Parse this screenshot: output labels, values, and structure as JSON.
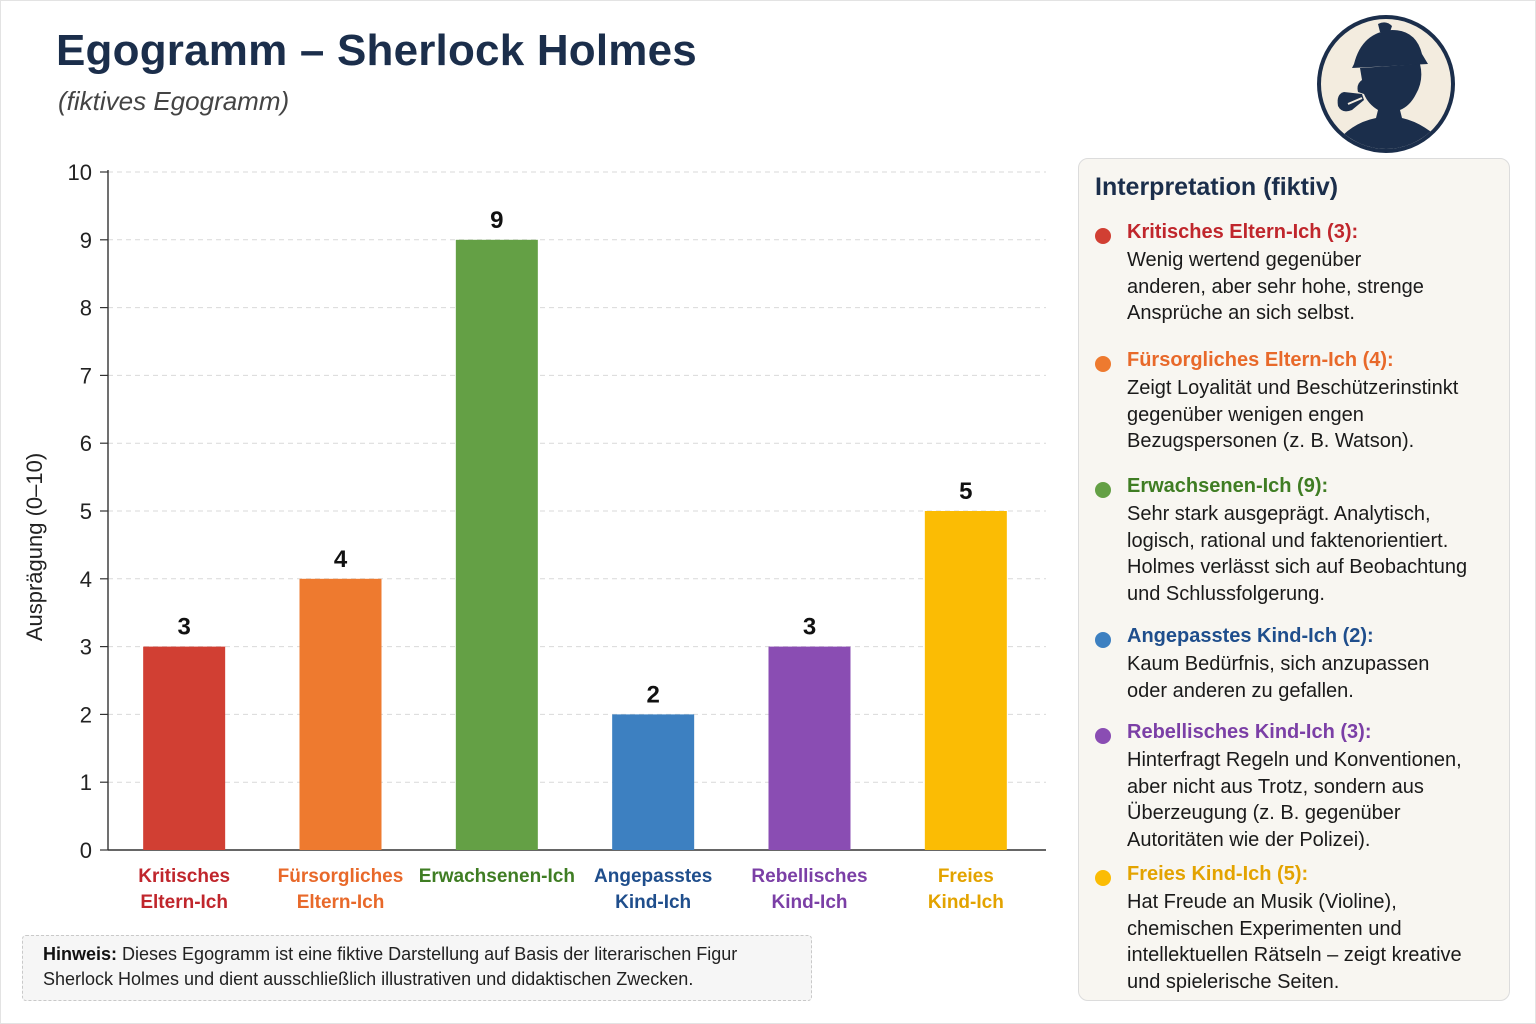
{
  "header": {
    "title": "Egogramm – Sherlock Holmes",
    "subtitle": "(fiktives Egogramm)"
  },
  "logo_icon": "sherlock-silhouette-icon",
  "chart_data": {
    "type": "bar",
    "categories": [
      [
        "Kritisches",
        "Eltern-Ich"
      ],
      [
        "Fürsorgliches",
        "Eltern-Ich"
      ],
      [
        "Erwachsenen-Ich"
      ],
      [
        "Angepasstes",
        "Kind-Ich"
      ],
      [
        "Rebellisches",
        "Kind-Ich"
      ],
      [
        "Freies",
        "Kind-Ich"
      ]
    ],
    "values": [
      3,
      4,
      9,
      2,
      3,
      5
    ],
    "colors": [
      "#d13f33",
      "#ee7a2f",
      "#64a045",
      "#3d80c1",
      "#8a4db3",
      "#fbbc04"
    ],
    "label_colors": [
      "#c0262c",
      "#e8692a",
      "#3f7d23",
      "#1f4e8c",
      "#7b3fa6",
      "#e3a300"
    ],
    "ylabel": "Ausprägung (0–10)",
    "ylim": [
      0,
      10
    ],
    "yticks": [
      0,
      1,
      2,
      3,
      4,
      5,
      6,
      7,
      8,
      9,
      10
    ],
    "grid": true,
    "data_labels": true
  },
  "note": {
    "bold": "Hinweis:",
    "line1": "Dieses Egogramm ist eine fiktive Darstellung auf Basis der literarischen Figur",
    "line2": "Sherlock Holmes und dient ausschließlich illustrativen und didaktischen Zwecken."
  },
  "interpretation": {
    "title": "Interpretation (fiktiv)",
    "items": [
      {
        "heading": "Kritisches Eltern-Ich (3):",
        "color": "#c0262c",
        "dot": "#d13f33",
        "lines": [
          "Wenig wertend gegenüber",
          "anderen, aber sehr hohe, strenge",
          "Ansprüche an sich selbst."
        ]
      },
      {
        "heading": "Fürsorgliches Eltern-Ich (4):",
        "color": "#e8692a",
        "dot": "#ee7a2f",
        "lines": [
          "Zeigt Loyalität und Beschützerinstinkt",
          "gegenüber wenigen engen",
          "Bezugspersonen (z. B. Watson)."
        ]
      },
      {
        "heading": "Erwachsenen-Ich (9):",
        "color": "#3f7d23",
        "dot": "#64a045",
        "lines": [
          "Sehr stark ausgeprägt. Analytisch,",
          "logisch, rational und faktenorientiert.",
          "Holmes verlässt sich auf Beobachtung",
          "und Schlussfolgerung."
        ]
      },
      {
        "heading": "Angepasstes Kind-Ich (2):",
        "color": "#1f4e8c",
        "dot": "#3d80c1",
        "lines": [
          "Kaum Bedürfnis, sich anzupassen",
          "oder anderen zu gefallen."
        ]
      },
      {
        "heading": "Rebellisches Kind-Ich (3):",
        "color": "#7b3fa6",
        "dot": "#8a4db3",
        "lines": [
          "Hinterfragt Regeln und Konventionen,",
          "aber nicht aus Trotz, sondern aus",
          "Überzeugung (z. B. gegenüber",
          "Autoritäten wie der Polizei)."
        ]
      },
      {
        "heading": "Freies Kind-Ich (5):",
        "color": "#e3a300",
        "dot": "#fbbc04",
        "lines": [
          "Hat Freude an Musik (Violine),",
          "chemischen Experimenten und",
          "intellektuellen Rätseln – zeigt kreative",
          "und spielerische Seiten."
        ]
      }
    ]
  }
}
